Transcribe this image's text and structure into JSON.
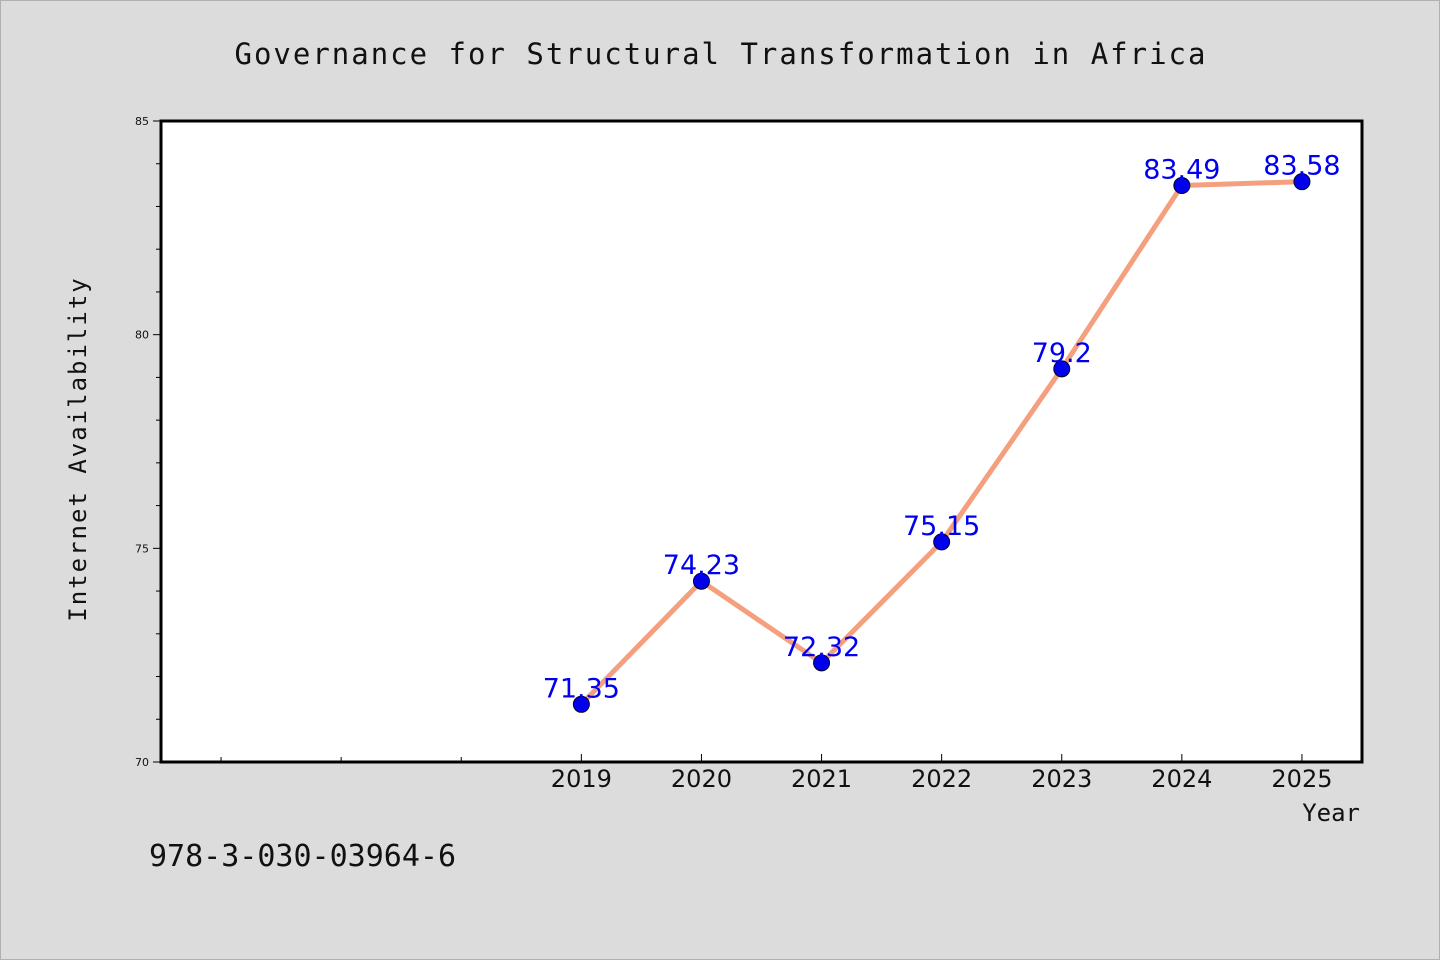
{
  "chart_data": {
    "type": "line",
    "title": "Governance for Structural Transformation in Africa",
    "xlabel": "Year",
    "ylabel": "Internet Availability",
    "categories": [
      "2019",
      "2020",
      "2021",
      "2022",
      "2023",
      "2024",
      "2025"
    ],
    "series": [
      {
        "values": [
          71.35,
          74.23,
          72.32,
          75.15,
          79.2,
          83.49,
          83.58
        ],
        "data_labels": [
          "71.35",
          "74.23",
          "72.32",
          "75.15",
          "79.2",
          "83.49",
          "83.58"
        ],
        "line_color": "#f4a07e",
        "marker_color": "#0000ee"
      }
    ],
    "xlim": [
      2015.5,
      2025.5
    ],
    "ylim": [
      70,
      85
    ],
    "yticks": [
      70,
      75,
      80,
      85
    ],
    "ytick_labels": [
      "70",
      "75",
      "80",
      "85"
    ],
    "y_minor_step": 1,
    "x_minor_ticks": [
      2016,
      2017,
      2018
    ],
    "grid": false,
    "legend": "none",
    "background_color": "#dcdcdc",
    "plot_background_color": "#ffffff",
    "label_color": "#0000ee"
  },
  "annotation": {
    "isbn": "978-3-030-03964-6"
  }
}
